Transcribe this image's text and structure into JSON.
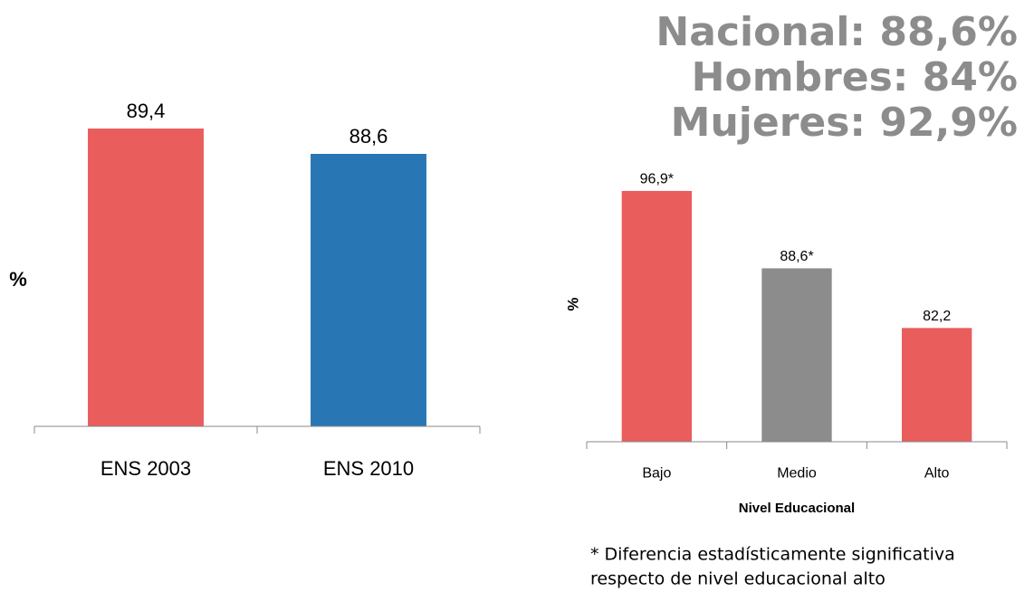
{
  "chart_data": [
    {
      "type": "bar",
      "ylabel": "%",
      "categories": [
        "ENS 2003",
        "ENS 2010"
      ],
      "values": [
        89.4,
        88.6
      ],
      "value_labels": [
        "89,4",
        "88,6"
      ],
      "colors": [
        "#e95d5d",
        "#2877b4"
      ],
      "ylim": [
        80,
        90
      ]
    },
    {
      "type": "bar",
      "ylabel": "%",
      "xlabel": "Nivel Educacional",
      "categories": [
        "Bajo",
        "Medio",
        "Alto"
      ],
      "values": [
        96.9,
        88.6,
        82.2
      ],
      "value_labels": [
        "96,9*",
        "88,6*",
        "82,2"
      ],
      "colors": [
        "#e95d5d",
        "#8c8c8c",
        "#e95d5d"
      ],
      "ylim": [
        70,
        100
      ]
    }
  ],
  "headline": [
    "Nacional: 88,6%",
    "Hombres: 84%",
    "Mujeres: 92,9%"
  ],
  "footnote": [
    "* Diferencia estadísticamente significativa",
    "respecto de  nivel educacional alto"
  ]
}
